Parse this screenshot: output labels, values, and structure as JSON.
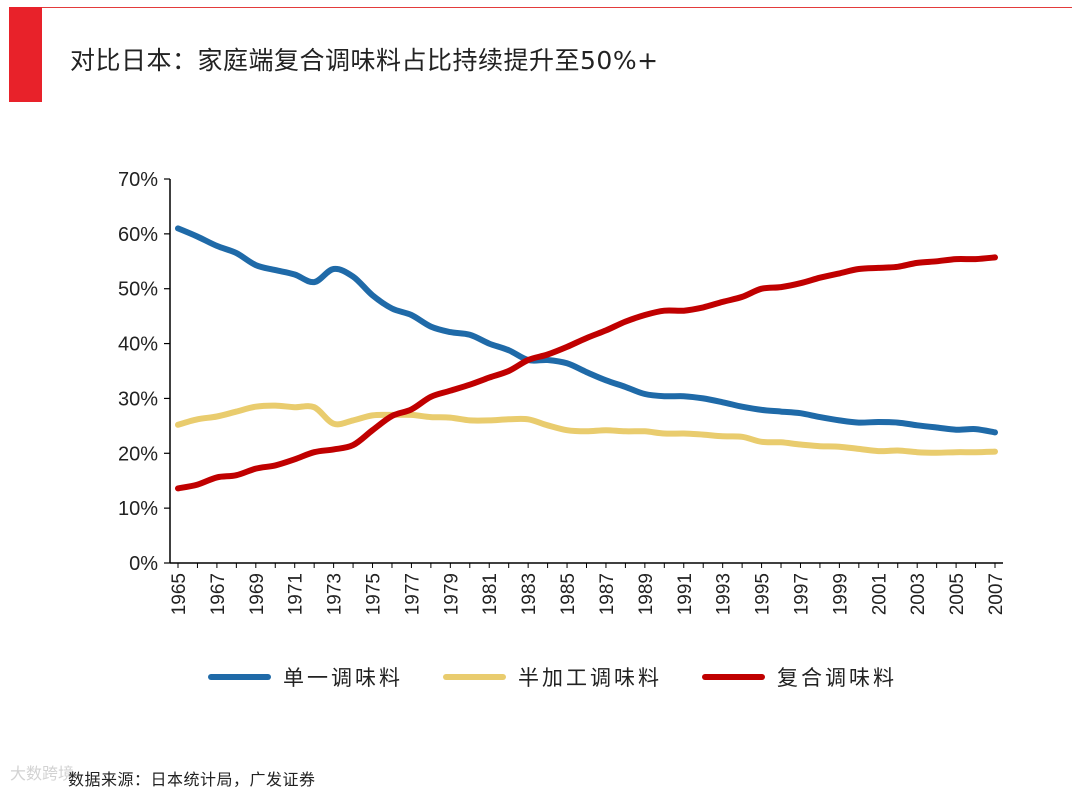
{
  "page": {
    "title": "对比日本：家庭端复合调味料占比持续提升至50%+",
    "source": "数据来源：日本统计局，广发证券",
    "watermark": "大数跨境",
    "accent_color": "#e8222a"
  },
  "chart_data": {
    "type": "line",
    "title": "",
    "xlabel": "",
    "ylabel": "",
    "ylim": [
      0,
      70
    ],
    "yticks": [
      "0%",
      "10%",
      "20%",
      "30%",
      "40%",
      "50%",
      "60%",
      "70%"
    ],
    "y_tick_values": [
      0,
      10,
      20,
      30,
      40,
      50,
      60,
      70
    ],
    "x": [
      1965,
      1966,
      1967,
      1968,
      1969,
      1970,
      1971,
      1972,
      1973,
      1974,
      1975,
      1976,
      1977,
      1978,
      1979,
      1980,
      1981,
      1982,
      1983,
      1984,
      1985,
      1986,
      1987,
      1988,
      1989,
      1990,
      1991,
      1992,
      1993,
      1994,
      1995,
      1996,
      1997,
      1998,
      1999,
      2000,
      2001,
      2002,
      2003,
      2004,
      2005,
      2006,
      2007
    ],
    "xticks": [
      "1965",
      "1967",
      "1969",
      "1971",
      "1973",
      "1975",
      "1977",
      "1979",
      "1981",
      "1983",
      "1985",
      "1987",
      "1989",
      "1991",
      "1993",
      "1995",
      "1997",
      "1999",
      "2001",
      "2003",
      "2005",
      "2007"
    ],
    "legend_position": "bottom",
    "series": [
      {
        "name": "单一调味料",
        "color": "#1f6aa8",
        "values": [
          61,
          59.5,
          57.8,
          56.5,
          54.3,
          53.4,
          52.6,
          51.2,
          53.6,
          52.2,
          48.8,
          46.4,
          45.2,
          43.1,
          42.1,
          41.6,
          40.0,
          38.8,
          37.0,
          37.0,
          36.4,
          34.8,
          33.3,
          32.1,
          30.8,
          30.4,
          30.4,
          30.0,
          29.3,
          28.5,
          27.9,
          27.6,
          27.3,
          26.6,
          26.0,
          25.6,
          25.7,
          25.6,
          25.1,
          24.7,
          24.3,
          24.4,
          23.8
        ]
      },
      {
        "name": "半加工调味料",
        "color": "#e9cc6e",
        "values": [
          25.2,
          26.2,
          26.7,
          27.6,
          28.5,
          28.7,
          28.4,
          28.4,
          25.4,
          26.0,
          26.9,
          27.0,
          27.0,
          26.6,
          26.5,
          26.0,
          26.0,
          26.2,
          26.2,
          25.1,
          24.2,
          24.0,
          24.2,
          24.0,
          24.0,
          23.6,
          23.6,
          23.4,
          23.1,
          23.0,
          22.1,
          22.0,
          21.6,
          21.3,
          21.2,
          20.8,
          20.4,
          20.5,
          20.2,
          20.1,
          20.2,
          20.2,
          20.3
        ]
      },
      {
        "name": "复合调味料",
        "color": "#c00000",
        "values": [
          13.6,
          14.3,
          15.6,
          16.0,
          17.2,
          17.8,
          18.9,
          20.2,
          20.7,
          21.5,
          24.2,
          26.8,
          28.0,
          30.3,
          31.4,
          32.5,
          33.8,
          35.0,
          37.0,
          38.0,
          39.4,
          41.0,
          42.4,
          44.0,
          45.2,
          46.0,
          46.0,
          46.6,
          47.6,
          48.5,
          50.0,
          50.3,
          51.0,
          52.0,
          52.8,
          53.6,
          53.8,
          54.0,
          54.7,
          55.0,
          55.4,
          55.4,
          55.7
        ]
      }
    ]
  }
}
